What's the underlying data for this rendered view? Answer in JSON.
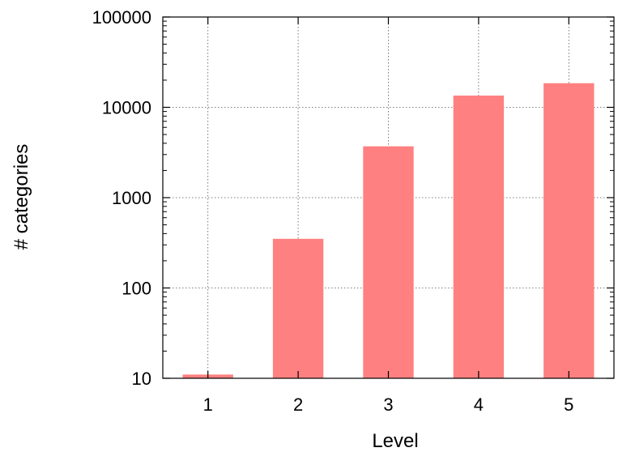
{
  "chart_data": {
    "type": "bar",
    "xlabel": "Level",
    "ylabel": "# categories",
    "categories": [
      "1",
      "2",
      "3",
      "4",
      "5"
    ],
    "values": [
      11,
      350,
      3700,
      13500,
      18500
    ],
    "yscale": "log",
    "ylim": [
      10,
      100000
    ],
    "yticks": [
      "10",
      "100",
      "1000",
      "10000",
      "100000"
    ],
    "grid": true,
    "bar_color": "#ff8080"
  }
}
